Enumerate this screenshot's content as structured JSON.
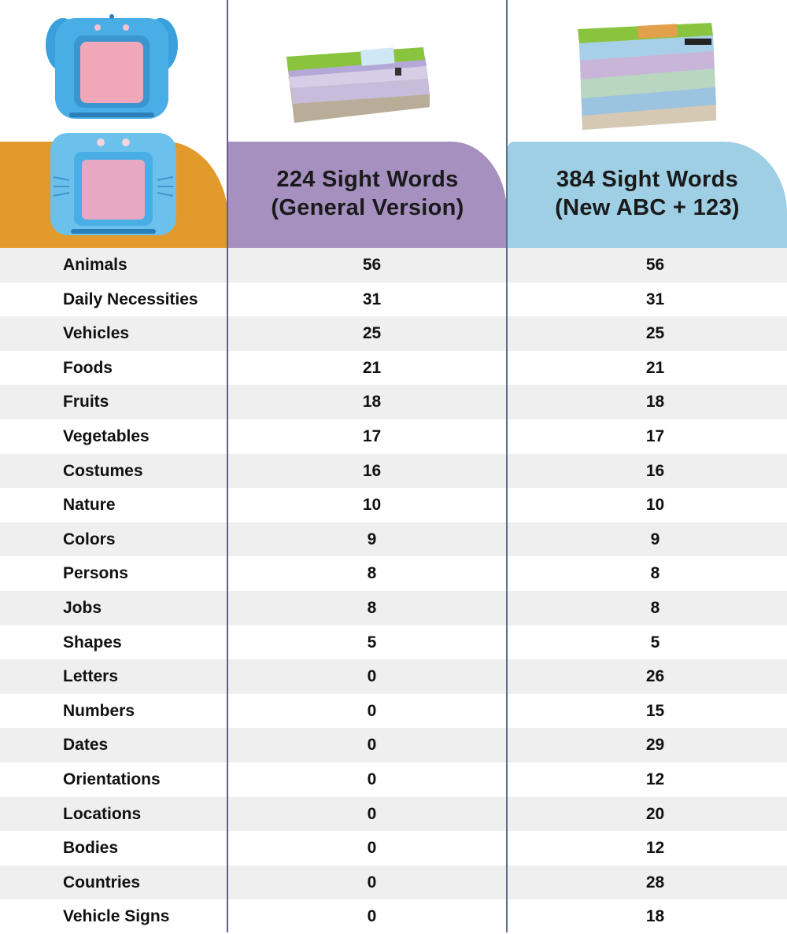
{
  "header": {
    "col_a_line1": "224 Sight Words",
    "col_a_line2": "(General Version)",
    "col_b_line1": "384 Sight Words",
    "col_b_line2": "(New ABC + 123)"
  },
  "colors": {
    "left_header": "#e39a2c",
    "col_a_header": "#a590c0",
    "col_b_header": "#9fcfe5",
    "row_shade": "#efefef",
    "device_blue": "#4aaee6",
    "device_screen": "#f2a7b8"
  },
  "images": {
    "device_top": "elephant-card-reader-icon",
    "device_bottom": "cat-card-reader-icon",
    "cards_a": "flash-card-stack-224-icon",
    "cards_b": "flash-card-stack-384-icon"
  },
  "rows": [
    {
      "label": "Animals",
      "a": "56",
      "b": "56"
    },
    {
      "label": "Daily Necessities",
      "a": "31",
      "b": "31"
    },
    {
      "label": "Vehicles",
      "a": "25",
      "b": "25"
    },
    {
      "label": "Foods",
      "a": "21",
      "b": "21"
    },
    {
      "label": "Fruits",
      "a": "18",
      "b": "18"
    },
    {
      "label": "Vegetables",
      "a": "17",
      "b": "17"
    },
    {
      "label": "Costumes",
      "a": "16",
      "b": "16"
    },
    {
      "label": "Nature",
      "a": "10",
      "b": "10"
    },
    {
      "label": "Colors",
      "a": "9",
      "b": "9"
    },
    {
      "label": "Persons",
      "a": "8",
      "b": "8"
    },
    {
      "label": "Jobs",
      "a": "8",
      "b": "8"
    },
    {
      "label": "Shapes",
      "a": "5",
      "b": "5"
    },
    {
      "label": "Letters",
      "a": "0",
      "b": "26"
    },
    {
      "label": "Numbers",
      "a": "0",
      "b": "15"
    },
    {
      "label": "Dates",
      "a": "0",
      "b": "29"
    },
    {
      "label": "Orientations",
      "a": "0",
      "b": "12"
    },
    {
      "label": "Locations",
      "a": "0",
      "b": "20"
    },
    {
      "label": "Bodies",
      "a": "0",
      "b": "12"
    },
    {
      "label": "Countries",
      "a": "0",
      "b": "28"
    },
    {
      "label": "Vehicle Signs",
      "a": "0",
      "b": "18"
    }
  ]
}
